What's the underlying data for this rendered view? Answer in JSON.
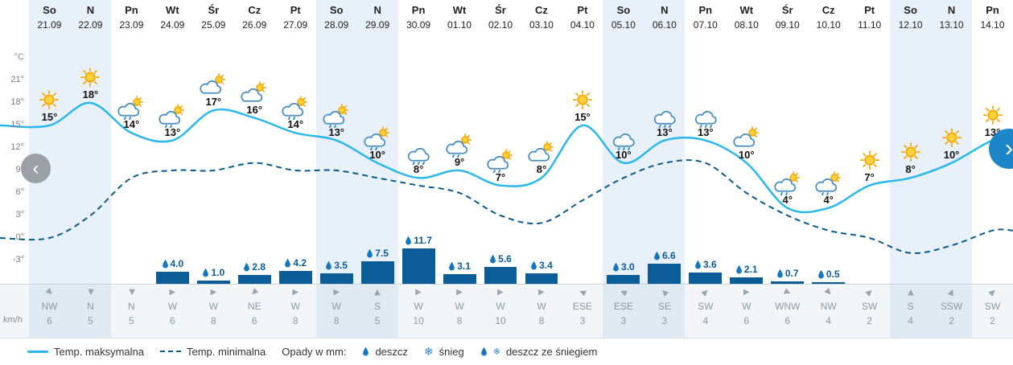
{
  "nav": {
    "prev": "‹",
    "next": "›"
  },
  "axis": {
    "temp_unit": "°C",
    "wind_unit": "km/h",
    "ticks": [
      {
        "label": "21°",
        "value": 21
      },
      {
        "label": "18°",
        "value": 18
      },
      {
        "label": "15°",
        "value": 15
      },
      {
        "label": "12°",
        "value": 12
      },
      {
        "label": "9°",
        "value": 9
      },
      {
        "label": "6°",
        "value": 6
      },
      {
        "label": "3°",
        "value": 3
      },
      {
        "label": "0°",
        "value": 0
      },
      {
        "label": "-3°",
        "value": -3
      }
    ]
  },
  "colors": {
    "max_line": "#2bb7ea",
    "min_line": "#0a5a8c",
    "bar": "#0c5c97",
    "weekend_bg": "#e8f1f9",
    "accent_blue": "#1c86c8"
  },
  "legend": {
    "max": "Temp. maksymalna",
    "min": "Temp. minimalna",
    "precip_label": "Opady w mm:",
    "rain": "deszcz",
    "snow": "śnieg",
    "rain_snow": "deszcz ze śniegiem"
  },
  "days": [
    {
      "dow": "So",
      "date": "21.09",
      "weekend": true,
      "tmax": 15,
      "icon": "sun",
      "precip": null,
      "wind_dir": "NW",
      "wind_speed": 6
    },
    {
      "dow": "N",
      "date": "22.09",
      "weekend": true,
      "tmax": 18,
      "icon": "sun",
      "precip": null,
      "wind_dir": "N",
      "wind_speed": 5
    },
    {
      "dow": "Pn",
      "date": "23.09",
      "weekend": false,
      "tmax": 14,
      "icon": "rain-sun",
      "precip": null,
      "wind_dir": "N",
      "wind_speed": 5
    },
    {
      "dow": "Wt",
      "date": "24.09",
      "weekend": false,
      "tmax": 13,
      "icon": "rain-sun",
      "precip": "4.0",
      "wind_dir": "W",
      "wind_speed": 6
    },
    {
      "dow": "Śr",
      "date": "25.09",
      "weekend": false,
      "tmax": 17,
      "icon": "partly",
      "precip": "1.0",
      "wind_dir": "W",
      "wind_speed": 8
    },
    {
      "dow": "Cz",
      "date": "26.09",
      "weekend": false,
      "tmax": 16,
      "icon": "partly",
      "precip": "2.8",
      "wind_dir": "NE",
      "wind_speed": 6
    },
    {
      "dow": "Pt",
      "date": "27.09",
      "weekend": false,
      "tmax": 14,
      "icon": "rain-sun",
      "precip": "4.2",
      "wind_dir": "W",
      "wind_speed": 8
    },
    {
      "dow": "So",
      "date": "28.09",
      "weekend": true,
      "tmax": 13,
      "icon": "rain-sun",
      "precip": "3.5",
      "wind_dir": "W",
      "wind_speed": 8
    },
    {
      "dow": "N",
      "date": "29.09",
      "weekend": true,
      "tmax": 10,
      "icon": "rain-sun",
      "precip": "7.5",
      "wind_dir": "S",
      "wind_speed": 5
    },
    {
      "dow": "Pn",
      "date": "30.09",
      "weekend": false,
      "tmax": 8,
      "icon": "rain",
      "precip": "11.7",
      "wind_dir": "W",
      "wind_speed": 10
    },
    {
      "dow": "Wt",
      "date": "01.10",
      "weekend": false,
      "tmax": 9,
      "icon": "rain-sun",
      "precip": "3.1",
      "wind_dir": "W",
      "wind_speed": 8
    },
    {
      "dow": "Śr",
      "date": "02.10",
      "weekend": false,
      "tmax": 7,
      "icon": "rain-sun",
      "precip": "5.6",
      "wind_dir": "W",
      "wind_speed": 10
    },
    {
      "dow": "Cz",
      "date": "03.10",
      "weekend": false,
      "tmax": 8,
      "icon": "partly",
      "precip": "3.4",
      "wind_dir": "W",
      "wind_speed": 8
    },
    {
      "dow": "Pt",
      "date": "04.10",
      "weekend": false,
      "tmax": 15,
      "icon": "sun",
      "precip": null,
      "wind_dir": "ESE",
      "wind_speed": 3
    },
    {
      "dow": "So",
      "date": "05.10",
      "weekend": true,
      "tmax": 10,
      "icon": "rain",
      "precip": "3.0",
      "wind_dir": "ESE",
      "wind_speed": 3
    },
    {
      "dow": "N",
      "date": "06.10",
      "weekend": true,
      "tmax": 13,
      "icon": "rain",
      "precip": "6.6",
      "wind_dir": "SE",
      "wind_speed": 3
    },
    {
      "dow": "Pn",
      "date": "07.10",
      "weekend": false,
      "tmax": 13,
      "icon": "rain",
      "precip": "3.6",
      "wind_dir": "SW",
      "wind_speed": 4
    },
    {
      "dow": "Wt",
      "date": "08.10",
      "weekend": false,
      "tmax": 10,
      "icon": "partly",
      "precip": "2.1",
      "wind_dir": "W",
      "wind_speed": 6
    },
    {
      "dow": "Śr",
      "date": "09.10",
      "weekend": false,
      "tmax": 4,
      "icon": "rain-sun",
      "precip": "0.7",
      "wind_dir": "WNW",
      "wind_speed": 6
    },
    {
      "dow": "Cz",
      "date": "10.10",
      "weekend": false,
      "tmax": 4,
      "icon": "rain-sun",
      "precip": "0.5",
      "wind_dir": "NW",
      "wind_speed": 4
    },
    {
      "dow": "Pt",
      "date": "11.10",
      "weekend": false,
      "tmax": 7,
      "icon": "sun",
      "precip": null,
      "wind_dir": "SW",
      "wind_speed": 2
    },
    {
      "dow": "So",
      "date": "12.10",
      "weekend": true,
      "tmax": 8,
      "icon": "sun",
      "precip": null,
      "wind_dir": "S",
      "wind_speed": 4
    },
    {
      "dow": "N",
      "date": "13.10",
      "weekend": true,
      "tmax": 10,
      "icon": "sun",
      "precip": null,
      "wind_dir": "SSW",
      "wind_speed": 2
    },
    {
      "dow": "Pn",
      "date": "14.10",
      "weekend": false,
      "tmax": 13,
      "icon": "sun",
      "precip": null,
      "wind_dir": "SW",
      "wind_speed": 2
    }
  ],
  "chart_data": {
    "type": "line+bar",
    "title": "",
    "xlabel": "",
    "ylabel": "°C",
    "ylim": [
      -3,
      21
    ],
    "x": [
      "21.09",
      "22.09",
      "23.09",
      "24.09",
      "25.09",
      "26.09",
      "27.09",
      "28.09",
      "29.09",
      "30.09",
      "01.10",
      "02.10",
      "03.10",
      "04.10",
      "05.10",
      "06.10",
      "07.10",
      "08.10",
      "09.10",
      "10.10",
      "11.10",
      "12.10",
      "13.10",
      "14.10"
    ],
    "series": [
      {
        "name": "Temp. maksymalna",
        "type": "line",
        "style": "solid",
        "values": [
          15,
          18,
          14,
          13,
          17,
          16,
          14,
          13,
          10,
          8,
          9,
          7,
          8,
          15,
          10,
          13,
          13,
          10,
          4,
          4,
          7,
          8,
          10,
          13
        ]
      },
      {
        "name": "Temp. minimalna",
        "type": "line",
        "style": "dashed",
        "values": [
          0,
          3,
          8,
          9,
          9,
          10,
          9,
          9,
          8,
          7,
          6,
          3,
          2,
          5,
          8,
          10,
          10,
          6,
          3,
          1,
          0,
          -2,
          -1,
          1
        ]
      },
      {
        "name": "Opady w mm",
        "type": "bar",
        "values": [
          0,
          0,
          0,
          4.0,
          1.0,
          2.8,
          4.2,
          3.5,
          7.5,
          11.7,
          3.1,
          5.6,
          3.4,
          0,
          3.0,
          6.6,
          3.6,
          2.1,
          0.7,
          0.5,
          0,
          0,
          0,
          0
        ]
      }
    ],
    "wind": {
      "unit": "km/h",
      "dir": [
        "NW",
        "N",
        "N",
        "W",
        "W",
        "NE",
        "W",
        "W",
        "S",
        "W",
        "W",
        "W",
        "W",
        "ESE",
        "ESE",
        "SE",
        "SW",
        "W",
        "WNW",
        "NW",
        "SW",
        "S",
        "SSW",
        "SW"
      ],
      "speed": [
        6,
        5,
        5,
        6,
        8,
        6,
        8,
        8,
        5,
        10,
        8,
        10,
        8,
        3,
        3,
        3,
        4,
        6,
        6,
        4,
        2,
        4,
        2,
        2
      ]
    },
    "legend_position": "bottom"
  }
}
